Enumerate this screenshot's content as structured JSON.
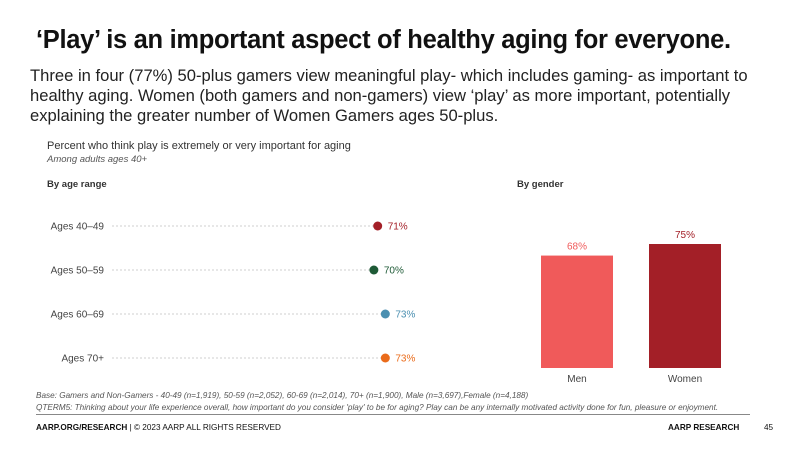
{
  "slide": {
    "title": "‘Play’ is an important aspect of healthy aging for everyone.",
    "subtitle": "Three in four (77%) 50-plus gamers view meaningful play- which includes gaming- as important to healthy aging. Women (both gamers and non-gamers) view ‘play’ as more important, potentially explaining the greater number of Women Gamers ages 50-plus.",
    "chart_title": "Percent who think play is extremely or very important for aging",
    "chart_subtitle": "Among adults ages 40+",
    "base_note": "Base: Gamers and Non-Gamers - 40-49 (n=1,919), 50-59 (n=2,052), 60-69 (n=2,014), 70+ (n=1,900), Male (n=3,697),Female (n=4,188)",
    "question_note": "QTERM5: Thinking about your life experience overall, how important do you consider 'play' to be for aging? Play can be any internally motivated activity done for fun, pleasure or enjoyment.",
    "footer_left_bold": "AARP.ORG/RESEARCH",
    "footer_left_rest": " | © 2023 AARP ALL RIGHTS RESERVED",
    "footer_right": "AARP RESEARCH",
    "page_number": "45"
  },
  "chart_data": [
    {
      "type": "scatter",
      "title": "By age range",
      "categories": [
        "Ages 40–49",
        "Ages 50–59",
        "Ages 60–69",
        "Ages 70+"
      ],
      "values": [
        71,
        70,
        73,
        73
      ],
      "value_labels": [
        "71%",
        "70%",
        "73%",
        "73%"
      ],
      "colors": [
        "#a31f27",
        "#1e5a36",
        "#4a8fb0",
        "#ea6b1a"
      ],
      "xlim": [
        0,
        75
      ],
      "grid": "dotted guide lines"
    },
    {
      "type": "bar",
      "title": "By gender",
      "categories": [
        "Men",
        "Women"
      ],
      "values": [
        68,
        75
      ],
      "value_labels": [
        "68%",
        "75%"
      ],
      "colors": [
        "#f05a5a",
        "#a31f27"
      ],
      "ylim": [
        0,
        75
      ]
    }
  ]
}
